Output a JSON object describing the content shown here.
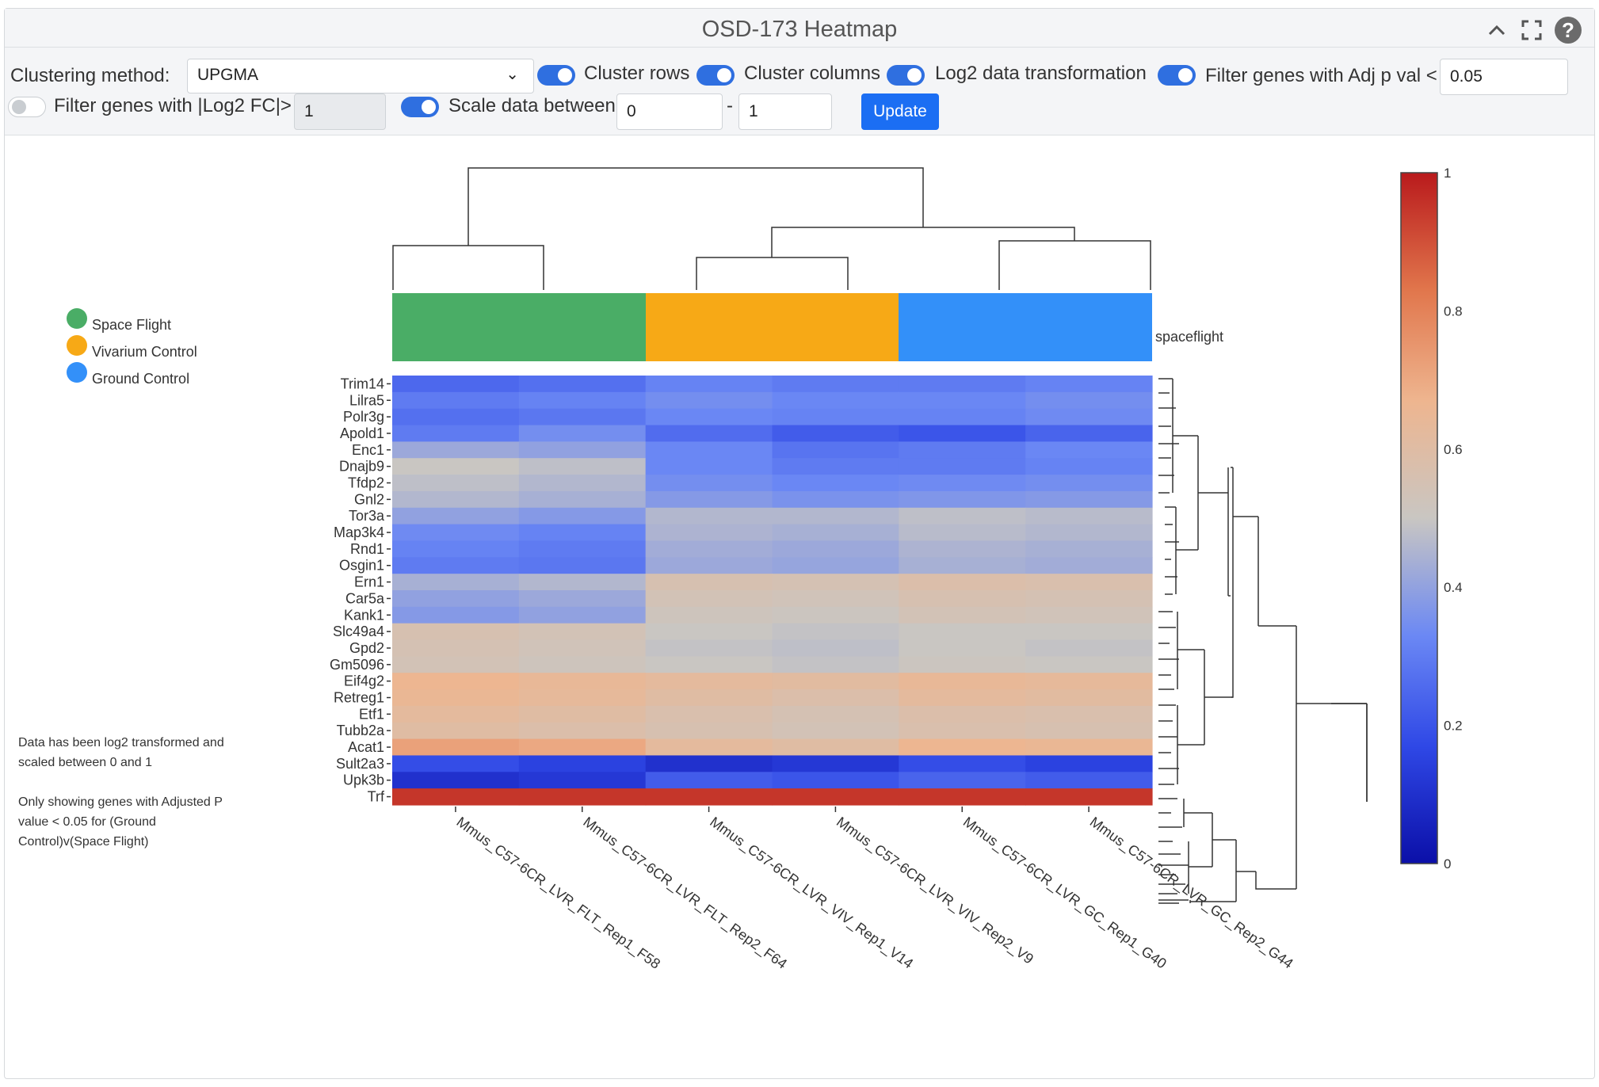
{
  "header": {
    "title": "OSD-173 Heatmap"
  },
  "controls": {
    "clustering_label": "Clustering method:",
    "clustering_value": "UPGMA",
    "cluster_rows_label": "Cluster rows",
    "cluster_columns_label": "Cluster columns",
    "log2_label": "Log2 data transformation",
    "adjp_label": "Filter genes with Adj p val <",
    "adjp_value": "0.05",
    "fc_label": "Filter genes with |Log2 FC|>",
    "fc_value": "1",
    "scale_label": "Scale data between",
    "scale_min": "0",
    "scale_sep": "-",
    "scale_max": "1",
    "update_label": "Update"
  },
  "legend": {
    "items": [
      {
        "label": "Space Flight",
        "color": "#4aad66"
      },
      {
        "label": "Vivarium Control",
        "color": "#f7a916"
      },
      {
        "label": "Ground Control",
        "color": "#3390f9"
      }
    ],
    "annotation_label": "spaceflight"
  },
  "note": {
    "line1": "Data has been log2 transformed and",
    "line2": "scaled between 0 and 1",
    "line3": "Only showing genes with Adjusted P",
    "line4": "value < 0.05 for (Ground",
    "line5": "Control)v(Space Flight)"
  },
  "chart_data": {
    "type": "heatmap",
    "columns": [
      "Mmus_C57-6CR_LVR_FLT_Rep1_F58",
      "Mmus_C57-6CR_LVR_FLT_Rep2_F64",
      "Mmus_C57-6CR_LVR_VIV_Rep1_V14",
      "Mmus_C57-6CR_LVR_VIV_Rep2_V9",
      "Mmus_C57-6CR_LVR_GC_Rep1_G40",
      "Mmus_C57-6CR_LVR_GC_Rep2_G44"
    ],
    "column_groups": [
      "Space Flight",
      "Space Flight",
      "Vivarium Control",
      "Vivarium Control",
      "Ground Control",
      "Ground Control"
    ],
    "row_tick_labels": [
      "Trim14",
      "Lilra5",
      "Polr3g",
      "Apold1",
      "Enc1",
      "Dnajb9",
      "Tfdp2",
      "Gnl2",
      "Tor3a",
      "Map3k4",
      "Rnd1",
      "Osgin1",
      "Ern1",
      "Car5a",
      "Kank1",
      "Slc49a4",
      "Gpd2",
      "Gm5096",
      "Eif4g2",
      "Retreg1",
      "Etf1",
      "Tubb2a",
      "Acat1",
      "Sult2a3",
      "Upk3b",
      "Trf"
    ],
    "approx_values": [
      [
        0.25,
        0.27,
        0.32,
        0.3,
        0.3,
        0.32
      ],
      [
        0.3,
        0.32,
        0.35,
        0.33,
        0.33,
        0.35
      ],
      [
        0.27,
        0.29,
        0.33,
        0.32,
        0.32,
        0.34
      ],
      [
        0.3,
        0.35,
        0.26,
        0.22,
        0.2,
        0.24
      ],
      [
        0.42,
        0.4,
        0.33,
        0.28,
        0.3,
        0.33
      ],
      [
        0.5,
        0.48,
        0.33,
        0.3,
        0.3,
        0.32
      ],
      [
        0.48,
        0.46,
        0.35,
        0.33,
        0.34,
        0.35
      ],
      [
        0.46,
        0.44,
        0.38,
        0.36,
        0.37,
        0.38
      ],
      [
        0.4,
        0.38,
        0.46,
        0.46,
        0.48,
        0.47
      ],
      [
        0.34,
        0.32,
        0.45,
        0.44,
        0.47,
        0.46
      ],
      [
        0.32,
        0.3,
        0.43,
        0.42,
        0.45,
        0.44
      ],
      [
        0.3,
        0.29,
        0.42,
        0.41,
        0.44,
        0.43
      ],
      [
        0.44,
        0.46,
        0.56,
        0.55,
        0.58,
        0.57
      ],
      [
        0.4,
        0.42,
        0.54,
        0.53,
        0.56,
        0.55
      ],
      [
        0.38,
        0.4,
        0.52,
        0.51,
        0.54,
        0.53
      ],
      [
        0.56,
        0.54,
        0.5,
        0.49,
        0.5,
        0.5
      ],
      [
        0.55,
        0.53,
        0.49,
        0.48,
        0.5,
        0.49
      ],
      [
        0.54,
        0.52,
        0.5,
        0.49,
        0.51,
        0.5
      ],
      [
        0.66,
        0.64,
        0.62,
        0.61,
        0.64,
        0.63
      ],
      [
        0.65,
        0.63,
        0.6,
        0.58,
        0.62,
        0.61
      ],
      [
        0.62,
        0.6,
        0.57,
        0.55,
        0.58,
        0.57
      ],
      [
        0.6,
        0.58,
        0.56,
        0.54,
        0.57,
        0.56
      ],
      [
        0.72,
        0.7,
        0.62,
        0.6,
        0.66,
        0.65
      ],
      [
        0.18,
        0.15,
        0.1,
        0.12,
        0.18,
        0.15
      ],
      [
        0.1,
        0.12,
        0.22,
        0.2,
        0.24,
        0.22
      ],
      [
        0.95,
        0.95,
        0.95,
        0.95,
        0.95,
        0.95
      ]
    ],
    "colorscale": [
      "#0b0fa8",
      "#2f48e6",
      "#6b88f4",
      "#c9c6c2",
      "#eeb58f",
      "#e1764c",
      "#b91a1c"
    ],
    "colorbar": {
      "min": 0,
      "max": 1,
      "ticks": [
        "1",
        "0.8",
        "0.6",
        "0.4",
        "0.2",
        "0"
      ]
    },
    "zlim": [
      0,
      1
    ]
  }
}
